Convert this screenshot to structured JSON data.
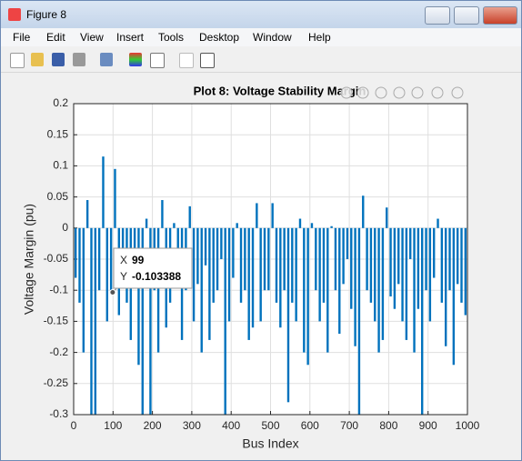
{
  "window": {
    "title": "Figure 8",
    "menu": [
      "File",
      "Edit",
      "View",
      "Insert",
      "Tools",
      "Desktop",
      "Window",
      "Help"
    ]
  },
  "chart_data": {
    "type": "bar",
    "title": "Plot 8: Voltage Stability Margin",
    "xlabel": "Bus Index",
    "ylabel": "Voltage Margin (pu)",
    "color": "#0072bd",
    "x": [
      5,
      15,
      25,
      35,
      45,
      55,
      65,
      75,
      85,
      95,
      105,
      115,
      125,
      135,
      145,
      155,
      165,
      175,
      185,
      195,
      205,
      215,
      225,
      235,
      245,
      255,
      265,
      275,
      285,
      295,
      305,
      315,
      325,
      335,
      345,
      355,
      365,
      375,
      385,
      395,
      405,
      415,
      425,
      435,
      445,
      455,
      465,
      475,
      485,
      495,
      505,
      515,
      525,
      535,
      545,
      555,
      565,
      575,
      585,
      595,
      605,
      615,
      625,
      635,
      645,
      655,
      665,
      675,
      685,
      695,
      705,
      715,
      725,
      735,
      745,
      755,
      765,
      775,
      785,
      795,
      805,
      815,
      825,
      835,
      845,
      855,
      865,
      875,
      885,
      895,
      905,
      915,
      925,
      935,
      945,
      955,
      965,
      975,
      985,
      995
    ],
    "values": [
      -0.08,
      -0.12,
      -0.2,
      0.045,
      -0.3,
      -0.3,
      -0.1,
      0.115,
      -0.15,
      -0.1,
      0.095,
      -0.14,
      -0.05,
      -0.12,
      -0.18,
      -0.05,
      -0.22,
      -0.3,
      0.015,
      -0.3,
      -0.1,
      -0.2,
      0.045,
      -0.16,
      -0.12,
      0.008,
      -0.09,
      -0.18,
      -0.1,
      0.035,
      -0.15,
      -0.09,
      -0.2,
      -0.06,
      -0.18,
      -0.12,
      -0.1,
      -0.05,
      -0.3,
      -0.15,
      -0.08,
      0.008,
      -0.12,
      -0.1,
      -0.18,
      -0.16,
      0.04,
      -0.15,
      -0.1,
      -0.1,
      0.04,
      -0.12,
      -0.16,
      -0.1,
      -0.28,
      -0.12,
      -0.15,
      0.015,
      -0.2,
      -0.22,
      0.008,
      -0.1,
      -0.15,
      -0.12,
      -0.2,
      0.003,
      -0.1,
      -0.17,
      -0.09,
      -0.05,
      -0.13,
      -0.19,
      -0.3,
      0.052,
      -0.1,
      -0.12,
      -0.15,
      -0.2,
      -0.18,
      0.033,
      -0.11,
      -0.13,
      -0.09,
      -0.15,
      -0.18,
      -0.05,
      -0.2,
      -0.13,
      -0.3,
      -0.1,
      -0.15,
      -0.08,
      0.015,
      -0.12,
      -0.19,
      -0.1,
      -0.22,
      -0.09,
      -0.12,
      -0.14
    ],
    "xlim": [
      0,
      1000
    ],
    "xticks": [
      0,
      100,
      200,
      300,
      400,
      500,
      600,
      700,
      800,
      900,
      1000
    ],
    "ylim": [
      -0.3,
      0.2
    ],
    "yticks": [
      -0.3,
      -0.25,
      -0.2,
      -0.15,
      -0.1,
      -0.05,
      0,
      0.05,
      0.1,
      0.15,
      0.2
    ],
    "grid": true,
    "datatip": {
      "x_label": "X",
      "x": 99,
      "y_label": "Y",
      "y": -0.103388
    }
  }
}
